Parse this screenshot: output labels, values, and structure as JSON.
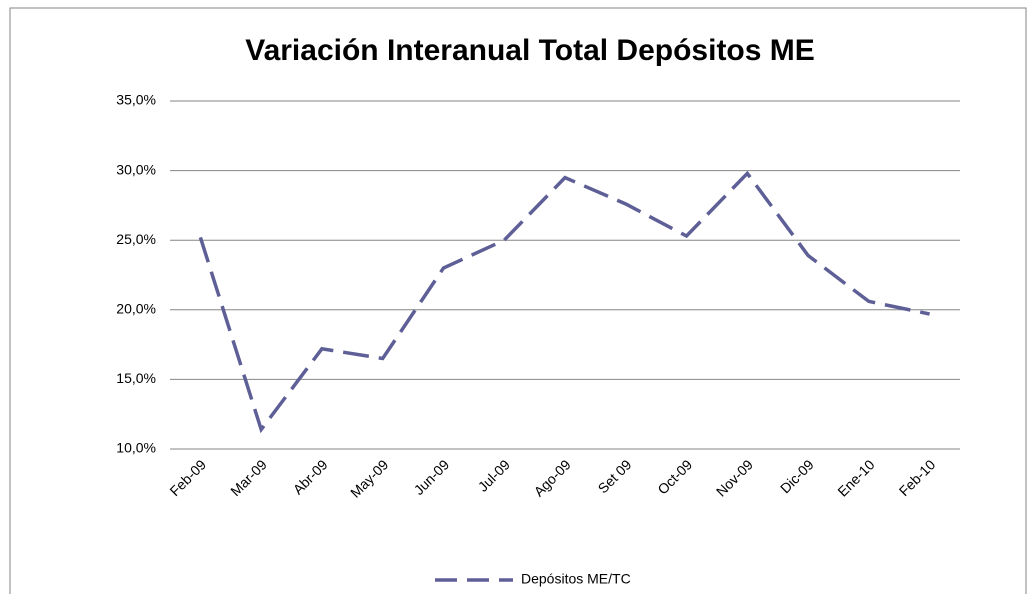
{
  "chart_data": {
    "type": "line",
    "title": "Variación Interanual Total Depósitos ME",
    "categories": [
      "Feb-09",
      "Mar-09",
      "Abr-09",
      "May-09",
      "Jun-09",
      "Jul-09",
      "Ago-09",
      "Set 09",
      "Oct-09",
      "Nov-09",
      "Dic-09",
      "Ene-10",
      "Feb-10"
    ],
    "series": [
      {
        "name": "Depósitos ME/TC",
        "color": "#5f5f97",
        "values": [
          25.2,
          11.4,
          17.2,
          16.5,
          23.0,
          25.0,
          29.5,
          27.6,
          25.3,
          29.8,
          23.9,
          20.6,
          19.7
        ]
      }
    ],
    "ylim": [
      10,
      35
    ],
    "yticks": [
      {
        "value": 10,
        "label": "10,0%"
      },
      {
        "value": 15,
        "label": "15,0%"
      },
      {
        "value": 20,
        "label": "20,0%"
      },
      {
        "value": 25,
        "label": "25,0%"
      },
      {
        "value": 30,
        "label": "30,0%"
      },
      {
        "value": 35,
        "label": "35,0%"
      }
    ],
    "grid": true,
    "legend": "bottom"
  }
}
